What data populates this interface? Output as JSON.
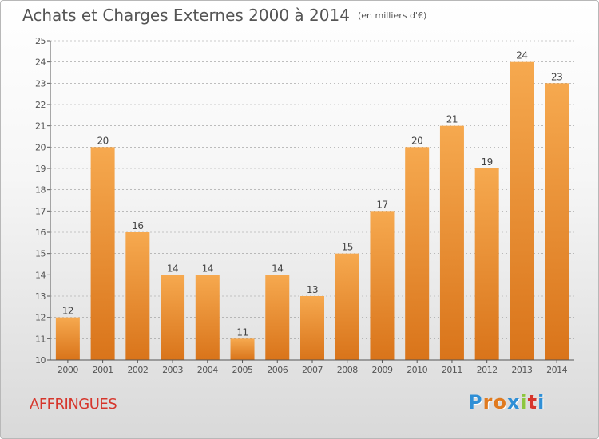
{
  "title": "Achats et Charges Externes 2000 à 2014",
  "subtitle": "(en milliers d'€)",
  "commune": "AFFRINGUES",
  "brand": {
    "letters": [
      "P",
      "r",
      "o",
      "x",
      "i",
      "t",
      "i"
    ],
    "colors": [
      "#2f8fd6",
      "#e07a1f",
      "#e07a1f",
      "#2f8fd6",
      "#8cc63f",
      "#d6362c",
      "#2f8fd6"
    ]
  },
  "colors": {
    "bar_top": "#f6a94f",
    "bar_bottom": "#d9741a",
    "axis": "#555555",
    "grid": "#999999"
  },
  "chart_data": {
    "type": "bar",
    "categories": [
      "2000",
      "2001",
      "2002",
      "2003",
      "2004",
      "2005",
      "2006",
      "2007",
      "2008",
      "2009",
      "2010",
      "2011",
      "2012",
      "2013",
      "2014"
    ],
    "values": [
      12,
      20,
      16,
      14,
      14,
      11,
      14,
      13,
      15,
      17,
      20,
      21,
      19,
      24,
      23
    ],
    "data_labels": [
      "12",
      "20",
      "16",
      "14",
      "14",
      "11",
      "14",
      "13",
      "15",
      "17",
      "20",
      "21",
      "19",
      "24",
      "23"
    ],
    "ylim": [
      10,
      25
    ],
    "yticks": [
      "10",
      "11",
      "12",
      "13",
      "14",
      "15",
      "16",
      "17",
      "18",
      "19",
      "20",
      "21",
      "22",
      "23",
      "24",
      "25"
    ],
    "grid": "horizontal dashed",
    "xlabel": "",
    "ylabel": ""
  }
}
